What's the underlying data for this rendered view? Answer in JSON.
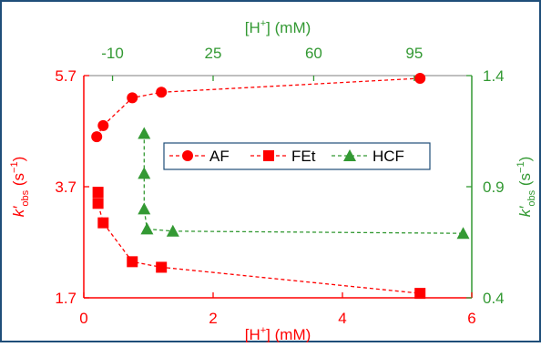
{
  "colors": {
    "primary": "#ff0000",
    "secondary": "#339933",
    "frame": "#1f4e79",
    "axis_box": "#7f7f7f"
  },
  "chart_data": {
    "type": "scatter",
    "title": "",
    "bottom_axis": {
      "label_base": "[H",
      "label_sup": "+",
      "label_tail": "] (mM)",
      "range": [
        0,
        6
      ],
      "ticks": [
        0,
        2,
        4,
        6
      ],
      "tick_labels": [
        "0",
        "2",
        "4",
        "6"
      ],
      "color": "#ff0000"
    },
    "top_axis": {
      "label_base": "[H",
      "label_sup": "+",
      "label_tail": "] (mM)",
      "range": [
        -20,
        115
      ],
      "ticks": [
        -10,
        25,
        60,
        95
      ],
      "tick_labels": [
        "-10",
        "25",
        "60",
        "95"
      ],
      "color": "#339933"
    },
    "left_axis": {
      "label_k": "k′",
      "label_sub": "obs",
      "label_tail": " (s",
      "label_sup": "−1",
      "label_close": ")",
      "range": [
        1.7,
        5.7
      ],
      "ticks": [
        1.7,
        3.7,
        5.7
      ],
      "tick_labels": [
        "1.7",
        "3.7",
        "5.7"
      ],
      "color": "#ff0000"
    },
    "right_axis": {
      "label_k": "k′",
      "label_sub": "obs",
      "label_tail": " (s",
      "label_sup": "−1",
      "label_close": ")",
      "range": [
        0.4,
        1.4
      ],
      "ticks": [
        0.4,
        0.9,
        1.4
      ],
      "tick_labels": [
        "0.4",
        "0.9",
        "1.4"
      ],
      "color": "#339933"
    },
    "grid": false,
    "legend_position": "center",
    "series": [
      {
        "name": "AF",
        "marker": "circle",
        "color": "#ff0000",
        "axes": "bottom-left",
        "points": [
          {
            "x": 0.2,
            "y": 4.6
          },
          {
            "x": 0.3,
            "y": 4.8
          },
          {
            "x": 0.75,
            "y": 5.3
          },
          {
            "x": 1.2,
            "y": 5.4
          },
          {
            "x": 5.2,
            "y": 5.65
          }
        ]
      },
      {
        "name": "FEt",
        "marker": "square",
        "color": "#ff0000",
        "axes": "bottom-left",
        "points": [
          {
            "x": 0.22,
            "y": 3.6
          },
          {
            "x": 0.22,
            "y": 3.4
          },
          {
            "x": 0.3,
            "y": 3.05
          },
          {
            "x": 0.75,
            "y": 2.35
          },
          {
            "x": 1.2,
            "y": 2.25
          },
          {
            "x": 5.2,
            "y": 1.78
          }
        ]
      },
      {
        "name": "HCF",
        "marker": "triangle",
        "color": "#339933",
        "axes": "top-right",
        "points": [
          {
            "x": 1,
            "y": 1.14
          },
          {
            "x": 1,
            "y": 0.96
          },
          {
            "x": 1,
            "y": 0.8
          },
          {
            "x": 2,
            "y": 0.71
          },
          {
            "x": 11,
            "y": 0.7
          },
          {
            "x": 112,
            "y": 0.69
          }
        ]
      }
    ]
  }
}
